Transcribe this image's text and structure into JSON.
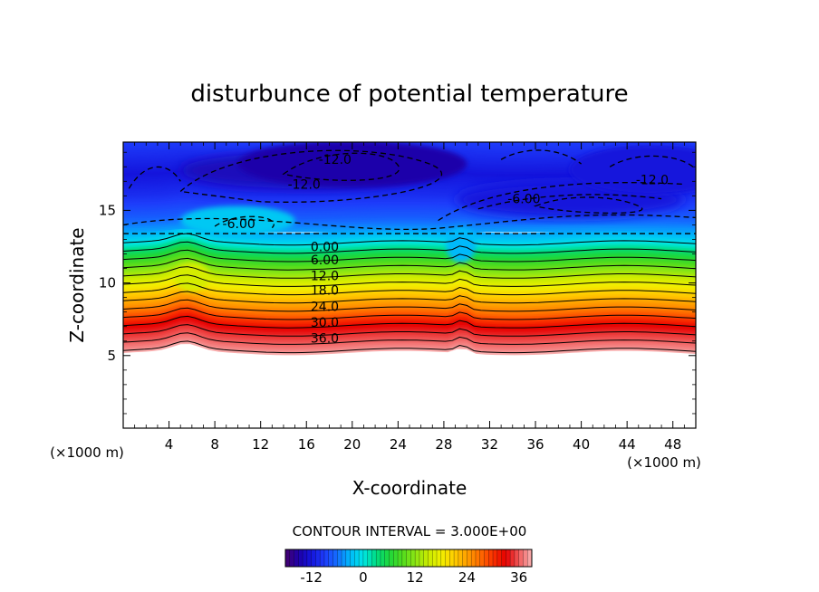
{
  "chart_data": {
    "type": "heatmap",
    "title": "disturbunce of potential temperature",
    "xlabel": "X-coordinate",
    "ylabel": "Z-coordinate",
    "x_unit": "(×1000 m)",
    "z_unit": "(×1000 m)",
    "xlim": [
      0,
      50
    ],
    "zlim": [
      0,
      19.7
    ],
    "x_ticks": [
      "4",
      "8",
      "12",
      "16",
      "20",
      "24",
      "28",
      "32",
      "36",
      "40",
      "44",
      "48"
    ],
    "z_ticks": [
      "5",
      "10",
      "15"
    ],
    "contour_interval_text": "CONTOUR INTERVAL = 3.000E+00",
    "contour_labels": [
      "-12.0",
      "-12.0",
      "-12.0",
      "-6.00",
      "-6.00",
      "0.00",
      "6.00",
      "12.0",
      "18.0",
      "24.0",
      "30.0",
      "36.0"
    ],
    "colorbar": {
      "range": [
        -18,
        39
      ],
      "ticks": [
        "-12",
        "0",
        "12",
        "24",
        "36"
      ]
    },
    "bands": [
      {
        "z": 5.2,
        "value": 39
      },
      {
        "z": 5.5,
        "value": 37.5
      },
      {
        "z": 6.0,
        "value": 36
      },
      {
        "z": 7.0,
        "value": 33
      },
      {
        "z": 8.0,
        "value": 27
      },
      {
        "z": 9.0,
        "value": 22
      },
      {
        "z": 10.0,
        "value": 17
      },
      {
        "z": 11.0,
        "value": 11
      },
      {
        "z": 12.0,
        "value": 5
      },
      {
        "z": 12.7,
        "value": 0
      },
      {
        "z": 13.3,
        "value": -3
      },
      {
        "z": 14.5,
        "value": -7
      },
      {
        "z": 16.0,
        "value": -10
      },
      {
        "z": 17.5,
        "value": -12
      },
      {
        "z": 19.7,
        "value": -9
      }
    ],
    "features": {
      "strong_cold_region": {
        "x": [
          5,
          27
        ],
        "z": [
          16.5,
          19
        ],
        "min_value": -15
      },
      "cold_region_right": {
        "x": [
          29,
          49
        ],
        "z": [
          14.5,
          17
        ],
        "min_value": -12
      },
      "warm_bump": {
        "x": [
          4,
          8
        ],
        "z": [
          9,
          11.5
        ]
      },
      "empty_below_z": 5.2
    }
  },
  "colors": {
    "background": "#ffffff",
    "axis": "#000000",
    "contour": "#000000"
  }
}
